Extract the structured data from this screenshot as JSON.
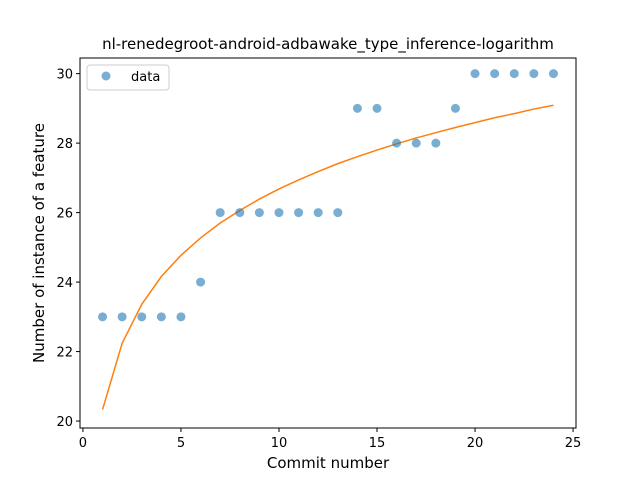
{
  "chart_data": {
    "type": "scatter",
    "title": "nl-renedegroot-android-adbawake_type_inference-logarithm",
    "xlabel": "Commit number",
    "ylabel": "Number of instance of a feature",
    "xlim": [
      -0.15,
      25.15
    ],
    "ylim": [
      19.8,
      30.45
    ],
    "xticks": [
      0,
      5,
      10,
      15,
      20,
      25
    ],
    "yticks": [
      20,
      22,
      24,
      26,
      28,
      30
    ],
    "grid": false,
    "legend": {
      "placement": "top-left",
      "entries": [
        "data"
      ]
    },
    "series": [
      {
        "name": "data",
        "kind": "scatter",
        "color": "#1f77b4",
        "x": [
          1,
          2,
          3,
          4,
          5,
          6,
          7,
          8,
          9,
          10,
          11,
          12,
          13,
          14,
          15,
          16,
          17,
          18,
          19,
          20,
          21,
          22,
          23,
          24
        ],
        "y": [
          23,
          23,
          23,
          23,
          23,
          24,
          26,
          26,
          26,
          26,
          26,
          26,
          26,
          29,
          29,
          28,
          28,
          28,
          29,
          30,
          30,
          30,
          30,
          30
        ]
      },
      {
        "kind": "line",
        "color": "#ff7f0e",
        "x": [
          1,
          2,
          3,
          4,
          5,
          6,
          7,
          8,
          9,
          10,
          11,
          12,
          13,
          14,
          15,
          16,
          17,
          18,
          19,
          20,
          21,
          22,
          23,
          24
        ],
        "y": [
          20.33,
          22.24,
          23.36,
          24.16,
          24.77,
          25.27,
          25.7,
          26.06,
          26.39,
          26.68,
          26.94,
          27.18,
          27.41,
          27.61,
          27.8,
          27.98,
          28.15,
          28.3,
          28.45,
          28.59,
          28.73,
          28.85,
          28.98,
          29.09
        ]
      }
    ]
  }
}
